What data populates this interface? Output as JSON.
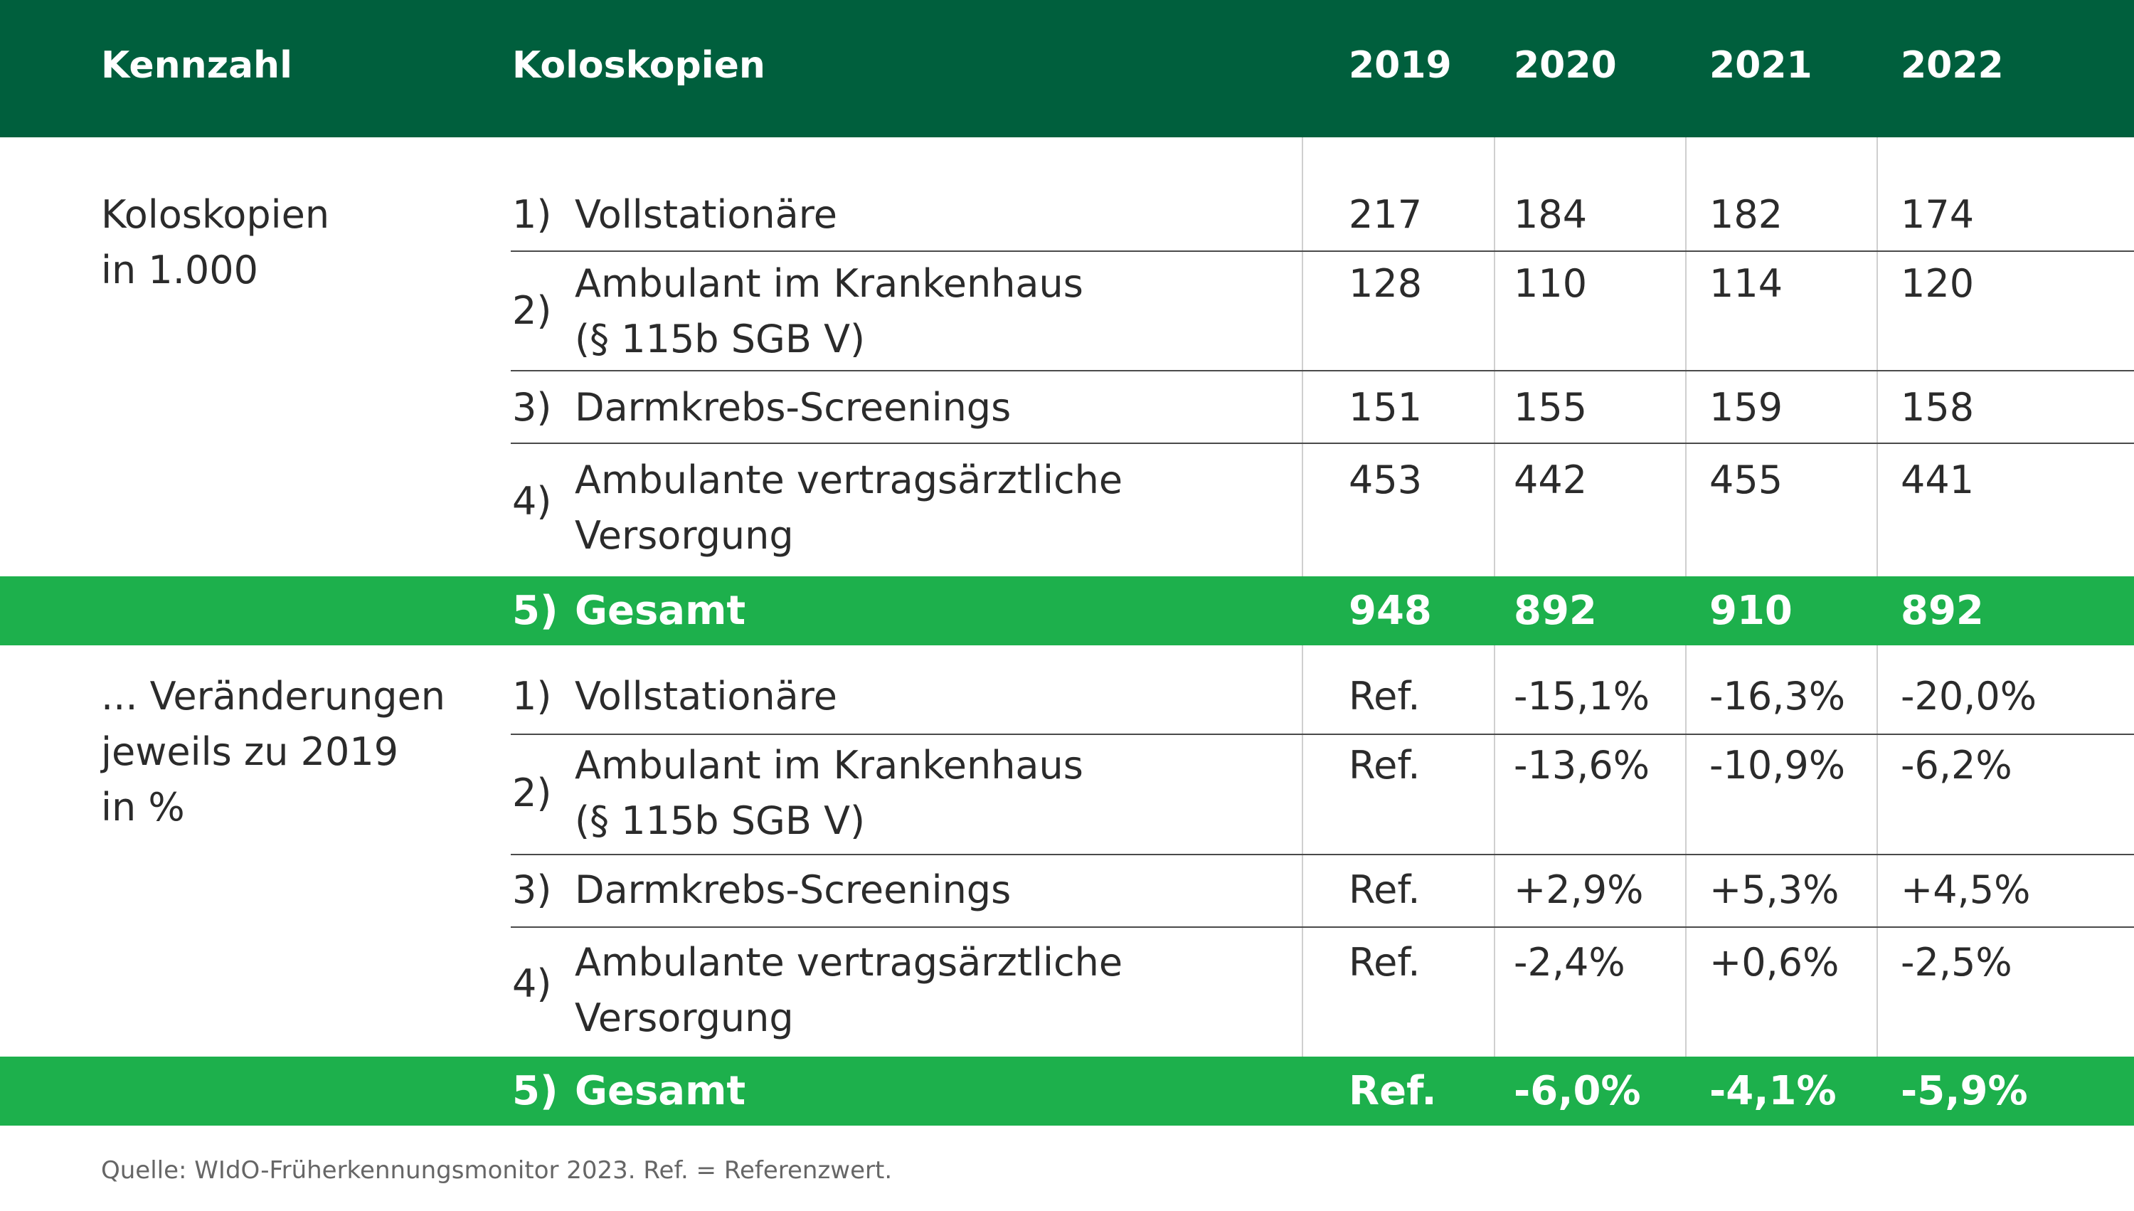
{
  "header": {
    "col_kennzahl": "Kennzahl",
    "col_koloskopien": "Koloskopien",
    "years": [
      "2019",
      "2020",
      "2021",
      "2022"
    ]
  },
  "section1": {
    "label_line1": "Koloskopien",
    "label_line2": "in 1.000",
    "rows": [
      {
        "num": "1)",
        "line1": "Vollstationäre",
        "line2": "",
        "values": [
          "217",
          "184",
          "182",
          "174"
        ]
      },
      {
        "num": "2)",
        "line1": "Ambulant im Krankenhaus",
        "line2": "(§ 115b SGB V)",
        "values": [
          "128",
          "110",
          "114",
          "120"
        ]
      },
      {
        "num": "3)",
        "line1": "Darmkrebs-Screenings",
        "line2": "",
        "values": [
          "151",
          "155",
          "159",
          "158"
        ]
      },
      {
        "num": "4)",
        "line1": "Ambulante vertragsärztliche",
        "line2": "Versorgung",
        "values": [
          "453",
          "442",
          "455",
          "441"
        ]
      }
    ],
    "total": {
      "num": "5)",
      "label": "Gesamt",
      "values": [
        "948",
        "892",
        "910",
        "892"
      ]
    }
  },
  "section2": {
    "label_line1": "... Veränderungen",
    "label_line2": "jeweils zu 2019",
    "label_line3": "in %",
    "rows": [
      {
        "num": "1)",
        "line1": "Vollstationäre",
        "line2": "",
        "values": [
          "Ref.",
          "-15,1%",
          "-16,3%",
          "-20,0%"
        ]
      },
      {
        "num": "2)",
        "line1": "Ambulant im Krankenhaus",
        "line2": "(§ 115b SGB V)",
        "values": [
          "Ref.",
          "-13,6%",
          "-10,9%",
          "-6,2%"
        ]
      },
      {
        "num": "3)",
        "line1": "Darmkrebs-Screenings",
        "line2": "",
        "values": [
          "Ref.",
          "+2,9%",
          "+5,3%",
          "+4,5%"
        ]
      },
      {
        "num": "4)",
        "line1": "Ambulante vertragsärztliche",
        "line2": "Versorgung",
        "values": [
          "Ref.",
          "-2,4%",
          "+0,6%",
          "-2,5%"
        ]
      }
    ],
    "total": {
      "num": "5)",
      "label": "Gesamt",
      "values": [
        "Ref.",
        "-6,0%",
        "-4,1%",
        "-5,9%"
      ]
    }
  },
  "source": "Quelle: WIdO-Früherkennungsmonitor 2023. Ref. = Referenzwert.",
  "colors": {
    "header": "#005f3d",
    "total_band": "#1db04c"
  }
}
